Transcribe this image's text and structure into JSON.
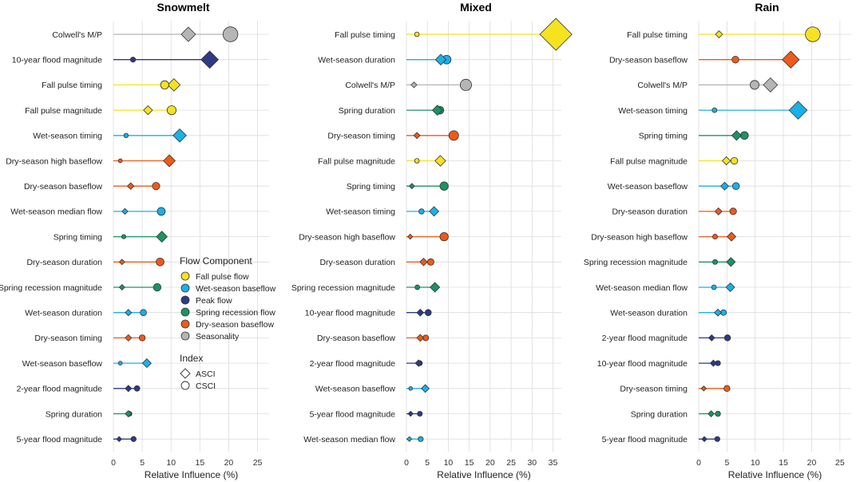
{
  "chart_data": {
    "type": "dot-lollipop",
    "x_axis_label": "Relative Influence (%)",
    "colors": {
      "Fall pulse flow": "#f5e221",
      "Wet-season baseflow": "#1ab0e8",
      "Peak flow": "#2e3a82",
      "Spring recession flow": "#1a9463",
      "Dry-season baseflow": "#ee5a1a",
      "Seasonality": "#b5b5b5"
    },
    "legend": {
      "flow_title": "Flow Component",
      "flow_items": [
        "Fall pulse flow",
        "Wet-season baseflow",
        "Peak flow",
        "Spring recession flow",
        "Dry-season baseflow",
        "Seasonality"
      ],
      "index_title": "Index",
      "index_items": [
        "ASCI",
        "CSCI"
      ]
    },
    "panels": [
      {
        "title": "Snowmelt",
        "xlim": [
          0,
          27
        ],
        "xticks": [
          0,
          5,
          10,
          15,
          20,
          25
        ],
        "rows": [
          {
            "label": "Colwell's M/P",
            "component": "Seasonality",
            "asci": 13.0,
            "csci": 20.3
          },
          {
            "label": "10-year flood magnitude",
            "component": "Peak flow",
            "asci": 16.7,
            "csci": 3.4
          },
          {
            "label": "Fall pulse timing",
            "component": "Fall pulse flow",
            "asci": 10.5,
            "csci": 8.9
          },
          {
            "label": "Fall pulse magnitude",
            "component": "Fall pulse flow",
            "asci": 6.0,
            "csci": 10.1
          },
          {
            "label": "Wet-season timing",
            "component": "Wet-season baseflow",
            "asci": 11.5,
            "csci": 2.2
          },
          {
            "label": "Dry-season high baseflow",
            "component": "Dry-season baseflow",
            "asci": 9.7,
            "csci": 1.2
          },
          {
            "label": "Dry-season baseflow",
            "component": "Dry-season baseflow",
            "asci": 3.0,
            "csci": 7.4
          },
          {
            "label": "Wet-season median flow",
            "component": "Wet-season baseflow",
            "asci": 2.0,
            "csci": 8.3
          },
          {
            "label": "Spring timing",
            "component": "Spring recession flow",
            "asci": 8.4,
            "csci": 1.8
          },
          {
            "label": "Dry-season duration",
            "component": "Dry-season baseflow",
            "asci": 1.5,
            "csci": 8.1
          },
          {
            "label": "Spring recession magnitude",
            "component": "Spring recession flow",
            "asci": 1.5,
            "csci": 7.6
          },
          {
            "label": "Wet-season duration",
            "component": "Wet-season baseflow",
            "asci": 2.6,
            "csci": 5.2
          },
          {
            "label": "Dry-season timing",
            "component": "Dry-season baseflow",
            "asci": 2.6,
            "csci": 5.0
          },
          {
            "label": "Wet-season baseflow",
            "component": "Wet-season baseflow",
            "asci": 5.8,
            "csci": 1.2
          },
          {
            "label": "2-year flood magnitude",
            "component": "Peak flow",
            "asci": 2.6,
            "csci": 4.1
          },
          {
            "label": "Spring duration",
            "component": "Spring recession flow",
            "asci": 2.6,
            "csci": 2.8
          },
          {
            "label": "5-year flood magnitude",
            "component": "Peak flow",
            "asci": 1.0,
            "csci": 3.5
          }
        ]
      },
      {
        "title": "Mixed",
        "xlim": [
          0,
          37
        ],
        "xticks": [
          0,
          5,
          10,
          15,
          20,
          25,
          30,
          35
        ],
        "rows": [
          {
            "label": "Fall pulse timing",
            "component": "Fall pulse flow",
            "asci": 35.7,
            "csci": 2.5
          },
          {
            "label": "Wet-season duration",
            "component": "Wet-season baseflow",
            "asci": 8.2,
            "csci": 9.6
          },
          {
            "label": "Colwell's M/P",
            "component": "Seasonality",
            "asci": 1.8,
            "csci": 14.2
          },
          {
            "label": "Spring duration",
            "component": "Spring recession flow",
            "asci": 7.4,
            "csci": 8.0
          },
          {
            "label": "Dry-season timing",
            "component": "Dry-season baseflow",
            "asci": 2.5,
            "csci": 11.3
          },
          {
            "label": "Fall pulse magnitude",
            "component": "Fall pulse flow",
            "asci": 8.1,
            "csci": 2.5
          },
          {
            "label": "Spring timing",
            "component": "Spring recession flow",
            "asci": 1.3,
            "csci": 9.0
          },
          {
            "label": "Wet-season timing",
            "component": "Wet-season baseflow",
            "asci": 6.6,
            "csci": 3.6
          },
          {
            "label": "Dry-season high baseflow",
            "component": "Dry-season baseflow",
            "asci": 0.9,
            "csci": 9.0
          },
          {
            "label": "Dry-season duration",
            "component": "Dry-season baseflow",
            "asci": 4.1,
            "csci": 5.8
          },
          {
            "label": "Spring recession magnitude",
            "component": "Spring recession flow",
            "asci": 6.8,
            "csci": 2.6
          },
          {
            "label": "10-year flood magnitude",
            "component": "Peak flow",
            "asci": 3.3,
            "csci": 5.2
          },
          {
            "label": "Dry-season baseflow",
            "component": "Dry-season baseflow",
            "asci": 3.3,
            "csci": 4.6
          },
          {
            "label": "2-year flood magnitude",
            "component": "Peak flow",
            "asci": 2.9,
            "csci": 3.2
          },
          {
            "label": "Wet-season baseflow",
            "component": "Wet-season baseflow",
            "asci": 4.5,
            "csci": 1.0
          },
          {
            "label": "5-year flood magnitude",
            "component": "Peak flow",
            "asci": 1.0,
            "csci": 3.2
          },
          {
            "label": "Wet-season median flow",
            "component": "Wet-season baseflow",
            "asci": 0.7,
            "csci": 3.4
          }
        ]
      },
      {
        "title": "Rain",
        "xlim": [
          0,
          27
        ],
        "xticks": [
          0,
          5,
          10,
          15,
          20,
          25
        ],
        "rows": [
          {
            "label": "Fall pulse timing",
            "component": "Fall pulse flow",
            "asci": 3.6,
            "csci": 20.2
          },
          {
            "label": "Dry-season baseflow",
            "component": "Dry-season baseflow",
            "asci": 16.3,
            "csci": 6.5
          },
          {
            "label": "Colwell's M/P",
            "component": "Seasonality",
            "asci": 12.7,
            "csci": 9.9
          },
          {
            "label": "Wet-season timing",
            "component": "Wet-season baseflow",
            "asci": 17.6,
            "csci": 2.8
          },
          {
            "label": "Spring timing",
            "component": "Spring recession flow",
            "asci": 6.7,
            "csci": 8.1
          },
          {
            "label": "Fall pulse magnitude",
            "component": "Fall pulse flow",
            "asci": 4.9,
            "csci": 6.3
          },
          {
            "label": "Wet-season baseflow",
            "component": "Wet-season baseflow",
            "asci": 4.6,
            "csci": 6.6
          },
          {
            "label": "Dry-season duration",
            "component": "Dry-season baseflow",
            "asci": 3.5,
            "csci": 6.1
          },
          {
            "label": "Dry-season high baseflow",
            "component": "Dry-season baseflow",
            "asci": 5.8,
            "csci": 2.9
          },
          {
            "label": "Spring recession magnitude",
            "component": "Spring recession flow",
            "asci": 5.7,
            "csci": 2.9
          },
          {
            "label": "Wet-season median flow",
            "component": "Wet-season baseflow",
            "asci": 5.6,
            "csci": 2.7
          },
          {
            "label": "Wet-season duration",
            "component": "Wet-season baseflow",
            "asci": 3.4,
            "csci": 4.4
          },
          {
            "label": "2-year flood magnitude",
            "component": "Peak flow",
            "asci": 2.3,
            "csci": 5.1
          },
          {
            "label": "10-year flood magnitude",
            "component": "Peak flow",
            "asci": 2.6,
            "csci": 3.4
          },
          {
            "label": "Dry-season timing",
            "component": "Dry-season baseflow",
            "asci": 0.9,
            "csci": 5.0
          },
          {
            "label": "Spring duration",
            "component": "Spring recession flow",
            "asci": 2.2,
            "csci": 3.4
          },
          {
            "label": "5-year flood magnitude",
            "component": "Peak flow",
            "asci": 1.0,
            "csci": 3.3
          }
        ]
      }
    ]
  }
}
